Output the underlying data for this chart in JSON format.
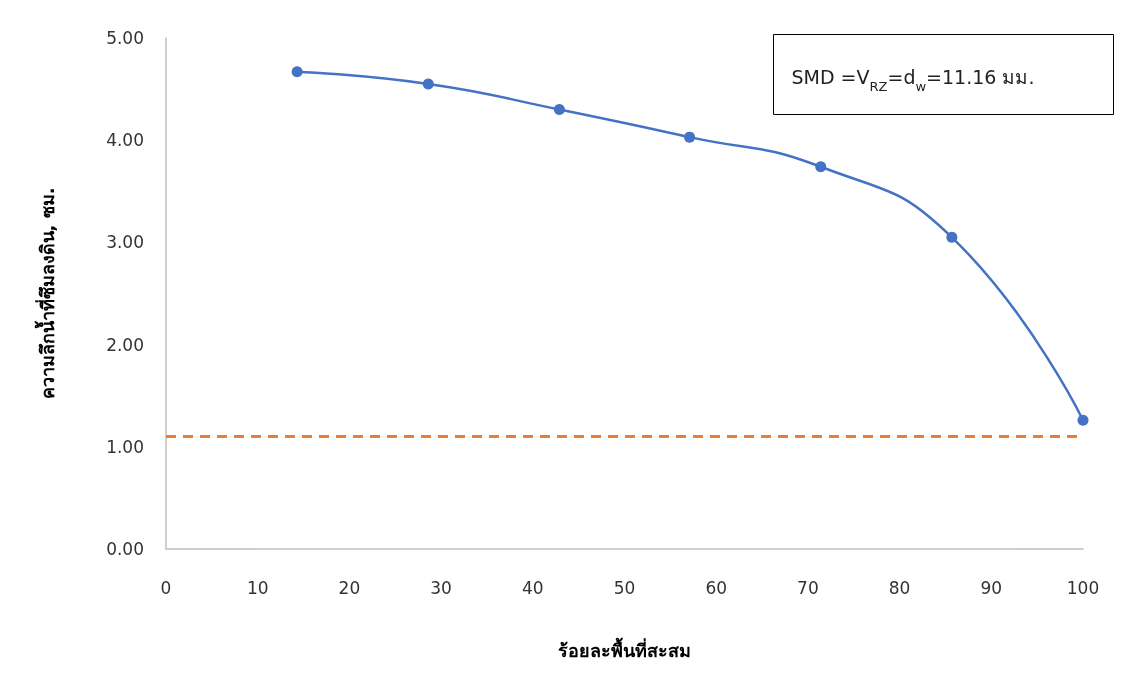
{
  "chart_data": {
    "type": "line",
    "xlabel": "ร้อยละพื้นที่สะสม",
    "ylabel": "ความลึกน้ำที่ซึมลงดิน, ซม.",
    "x": [
      14.3,
      28.6,
      42.9,
      57.1,
      71.4,
      85.7,
      100
    ],
    "series": [
      {
        "color": "#4472c4",
        "values": [
          4.67,
          4.55,
          4.3,
          4.03,
          3.74,
          3.05,
          1.26
        ]
      }
    ],
    "xlim": [
      0,
      100
    ],
    "xticks": [
      0,
      10,
      20,
      30,
      40,
      50,
      60,
      70,
      80,
      90,
      100
    ],
    "ylim": [
      0,
      5
    ],
    "yticks": [
      {
        "value": 0,
        "label": "0.00"
      },
      {
        "value": 1,
        "label": "1.00"
      },
      {
        "value": 2,
        "label": "2.00"
      },
      {
        "value": 3,
        "label": "3.00"
      },
      {
        "value": 4,
        "label": "4.00"
      },
      {
        "value": 5,
        "label": "5.00"
      }
    ],
    "ref_lines": [
      {
        "axis": "y",
        "value": 1.1,
        "color": "#ed7d31",
        "line_style": "dashed"
      }
    ],
    "annotations": [
      "SMD =V$_{RZ}$=d$_{w}$=11.16 มม."
    ],
    "grid": false,
    "marker": "circle",
    "line_style": "solid"
  }
}
